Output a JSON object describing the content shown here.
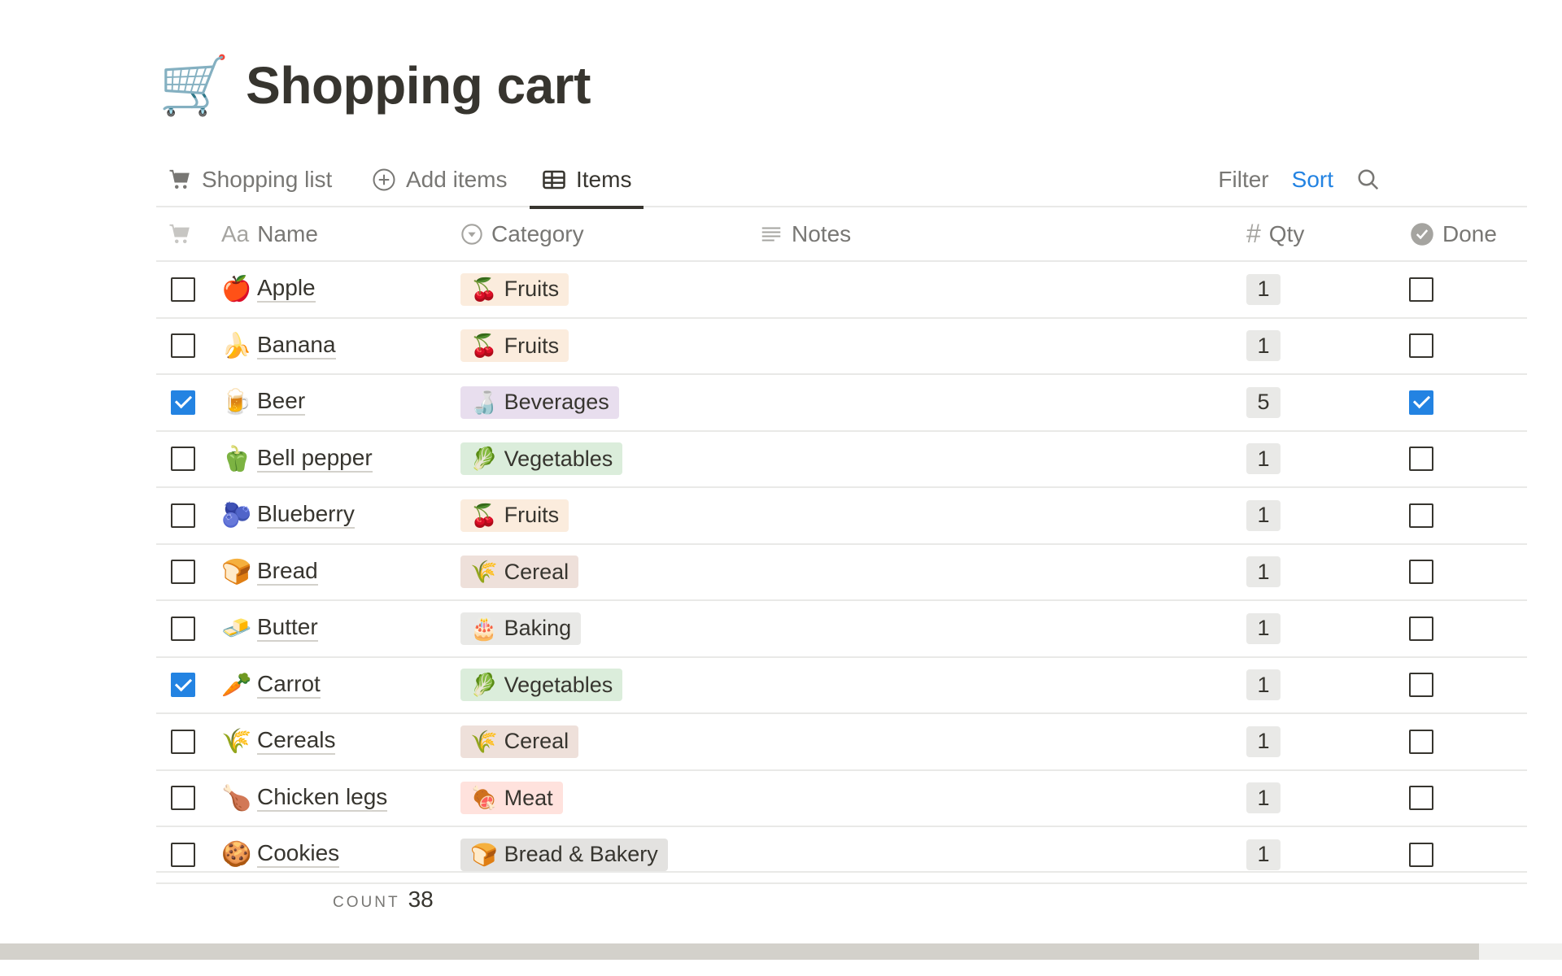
{
  "page": {
    "icon": "🛒",
    "title": "Shopping cart"
  },
  "tabs": [
    {
      "label": "Shopping list",
      "icon": "cart-icon"
    },
    {
      "label": "Add items",
      "icon": "plus-circle-icon"
    },
    {
      "label": "Items",
      "icon": "table-icon",
      "active": true
    }
  ],
  "toolbar": {
    "filter": "Filter",
    "sort": "Sort",
    "search_icon": "search-icon"
  },
  "columns": {
    "name": "Name",
    "name_prefix": "Aa",
    "category": "Category",
    "notes": "Notes",
    "qty": "Qty",
    "qty_prefix": "#",
    "done": "Done"
  },
  "rows": [
    {
      "checked": false,
      "emoji": "🍎",
      "name": "Apple",
      "cat_emoji": "🍒",
      "category": "Fruits",
      "qty": "1",
      "done": false
    },
    {
      "checked": false,
      "emoji": "🍌",
      "name": "Banana",
      "cat_emoji": "🍒",
      "category": "Fruits",
      "qty": "1",
      "done": false
    },
    {
      "checked": true,
      "emoji": "🍺",
      "name": "Beer",
      "cat_emoji": "🍶",
      "category": "Beverages",
      "qty": "5",
      "done": true
    },
    {
      "checked": false,
      "emoji": "🫑",
      "name": "Bell pepper",
      "cat_emoji": "🥬",
      "category": "Vegetables",
      "qty": "1",
      "done": false
    },
    {
      "checked": false,
      "emoji": "🫐",
      "name": "Blueberry",
      "cat_emoji": "🍒",
      "category": "Fruits",
      "qty": "1",
      "done": false
    },
    {
      "checked": false,
      "emoji": "🍞",
      "name": "Bread",
      "cat_emoji": "🌾",
      "category": "Cereal",
      "qty": "1",
      "done": false
    },
    {
      "checked": false,
      "emoji": "🧈",
      "name": "Butter",
      "cat_emoji": "🎂",
      "category": "Baking",
      "qty": "1",
      "done": false
    },
    {
      "checked": true,
      "emoji": "🥕",
      "name": "Carrot",
      "cat_emoji": "🥬",
      "category": "Vegetables",
      "qty": "1",
      "done": false
    },
    {
      "checked": false,
      "emoji": "🌾",
      "name": "Cereals",
      "cat_emoji": "🌾",
      "category": "Cereal",
      "qty": "1",
      "done": false
    },
    {
      "checked": false,
      "emoji": "🍗",
      "name": "Chicken legs",
      "cat_emoji": "🍖",
      "category": "Meat",
      "qty": "1",
      "done": false
    },
    {
      "checked": false,
      "emoji": "🍪",
      "name": "Cookies",
      "cat_emoji": "🍞",
      "category": "Bread & Bakery",
      "qty": "1",
      "done": false
    }
  ],
  "category_colors": {
    "Fruits": "#fbecdd",
    "Beverages": "#e8deee",
    "Vegetables": "#dbeddb",
    "Cereal": "#eee0da",
    "Baking": "#e9e9e7",
    "Meat": "#ffe2dd",
    "Bread & Bakery": "#e3e2e0"
  },
  "footer": {
    "count_label": "COUNT",
    "count": "38"
  },
  "colors": {
    "accent": "#2383e2",
    "text": "#37352f",
    "muted": "#787774"
  }
}
